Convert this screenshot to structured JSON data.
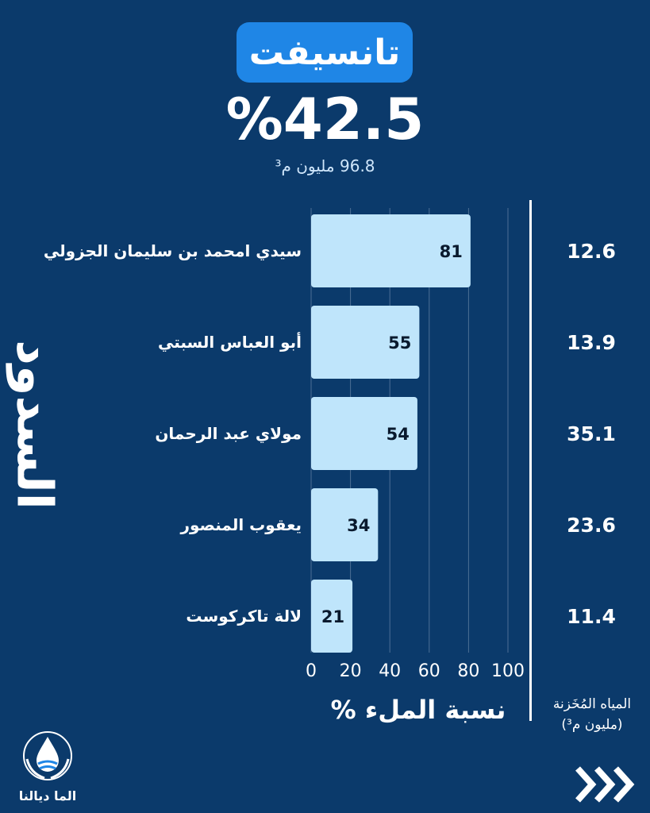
{
  "header": {
    "region": "تانسيفت",
    "fill_rate": "%42.5",
    "stored_volume": "96.8 مليون م³"
  },
  "side_title": "السدود",
  "footer": {
    "x_axis_title": "نسبة الملء %",
    "volume_header_line1": "المياه المُخَزنة",
    "volume_header_line2": "(مليون م³)",
    "logo_text": "الما ديالنا"
  },
  "colors": {
    "background": "#0b3a6b",
    "bar": "#bfe5fb",
    "badge": "#1f86e6",
    "grid": "#4d6f95"
  },
  "icons": {
    "logo": "water-drop-hands-icon",
    "next": "triple-chevron-right-icon"
  },
  "chart_data": {
    "type": "bar",
    "orientation": "horizontal",
    "categories": [
      "سيدي امحمد بن سليمان الجزولي",
      "أبو العباس السبتي",
      "مولاي عبد الرحمان",
      "يعقوب المنصور",
      "لالة تاكركوست"
    ],
    "values": [
      81,
      55,
      54,
      34,
      21
    ],
    "stored_volumes": [
      "12.6",
      "13.9",
      "35.1",
      "23.6",
      "11.4"
    ],
    "xlim": [
      0,
      100
    ],
    "xticks": [
      0,
      20,
      40,
      60,
      80,
      100
    ],
    "xlabel": "نسبة الملء %",
    "ylabel": "السدود",
    "grid": true,
    "data_labels": true
  }
}
